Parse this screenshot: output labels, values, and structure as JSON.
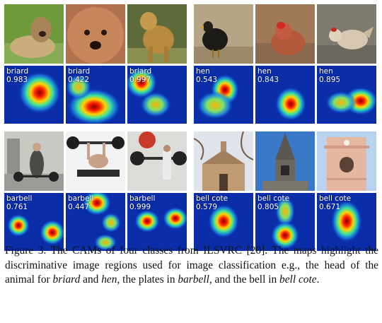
{
  "groups": [
    {
      "class": "briard",
      "cams": [
        {
          "label": "briard",
          "score": "0.983"
        },
        {
          "label": "briard",
          "score": "0.422"
        },
        {
          "label": "briard",
          "score": "0.997"
        }
      ]
    },
    {
      "class": "hen",
      "cams": [
        {
          "label": "hen",
          "score": "0.543"
        },
        {
          "label": "hen",
          "score": "0.843"
        },
        {
          "label": "hen",
          "score": "0.895"
        }
      ]
    },
    {
      "class": "barbell",
      "cams": [
        {
          "label": "barbell",
          "score": "0.761"
        },
        {
          "label": "barbell",
          "score": "0.447"
        },
        {
          "label": "barbell",
          "score": "0.999"
        }
      ]
    },
    {
      "class": "bell cote",
      "cams": [
        {
          "label": "bell cote",
          "score": "0.579"
        },
        {
          "label": "bell cote",
          "score": "0.805"
        },
        {
          "label": "bell cote",
          "score": "0.671"
        }
      ]
    }
  ],
  "caption": {
    "part1": "Figure 3. The CAMs of four classes from ILSVRC [20]. The maps highlight the discriminative image regions used for image classification e.g., the head of the animal for ",
    "em1": "briard",
    "part2": " and ",
    "em2": "hen",
    "part3": ", the plates in ",
    "em3": "barbell",
    "part4": ", and the bell in ",
    "em4": "bell cote",
    "part5": "."
  }
}
